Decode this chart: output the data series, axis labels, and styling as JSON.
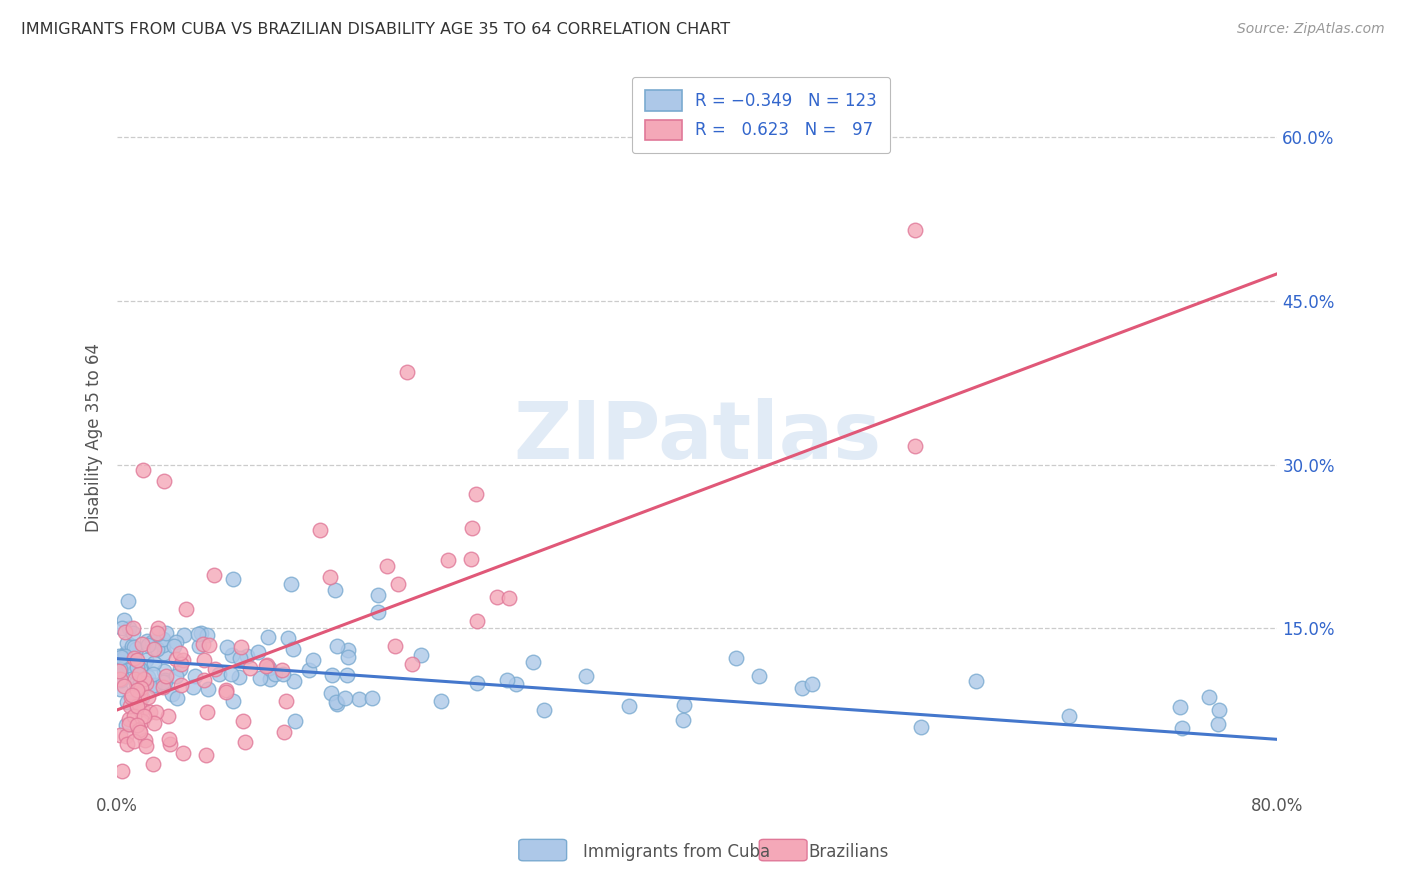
{
  "title": "IMMIGRANTS FROM CUBA VS BRAZILIAN DISABILITY AGE 35 TO 64 CORRELATION CHART",
  "source": "Source: ZipAtlas.com",
  "ylabel": "Disability Age 35 to 64",
  "x_min": 0.0,
  "x_max": 0.8,
  "y_min": 0.0,
  "y_max": 0.65,
  "x_tick_positions": [
    0.0,
    0.1,
    0.2,
    0.3,
    0.4,
    0.5,
    0.6,
    0.7,
    0.8
  ],
  "x_tick_labels": [
    "0.0%",
    "",
    "",
    "",
    "",
    "",
    "",
    "",
    "80.0%"
  ],
  "y_ticks_right": [
    0.15,
    0.3,
    0.45,
    0.6
  ],
  "y_tick_labels_right": [
    "15.0%",
    "30.0%",
    "45.0%",
    "60.0%"
  ],
  "watermark": "ZIPatlas",
  "cuba_color": "#adc8e8",
  "cuba_edge_color": "#7aaad0",
  "brazil_color": "#f4a8b8",
  "brazil_edge_color": "#e07898",
  "cuba_line_color": "#4477cc",
  "brazil_line_color": "#e05878",
  "background_color": "#ffffff",
  "grid_color": "#cccccc",
  "title_color": "#333333",
  "axis_label_color": "#555555",
  "right_tick_color": "#3366cc",
  "cuba_line_x0": 0.0,
  "cuba_line_y0": 0.122,
  "cuba_line_x1": 0.8,
  "cuba_line_y1": 0.048,
  "brazil_line_x0": 0.0,
  "brazil_line_y0": 0.075,
  "brazil_line_x1": 0.8,
  "brazil_line_y1": 0.475
}
